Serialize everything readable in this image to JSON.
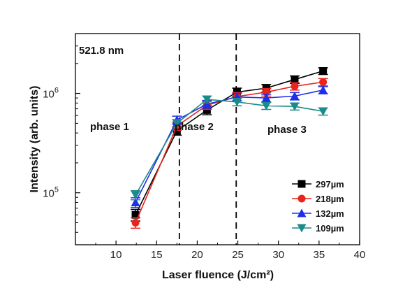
{
  "chart_data": {
    "type": "line",
    "xlabel": "Laser fluence (J/cm²)",
    "ylabel": "Intensity (arb. units)",
    "xlim": [
      5,
      40
    ],
    "ylim": [
      30000,
      4000000
    ],
    "yscale": "log",
    "x_ticks": [
      10,
      15,
      20,
      25,
      30,
      35,
      40
    ],
    "y_ticks": [
      {
        "value": 100000,
        "label_base": "10",
        "label_exp": "5"
      },
      {
        "value": 1000000,
        "label_base": "10",
        "label_exp": "6"
      }
    ],
    "x": [
      12.4,
      17.5,
      21.2,
      24.9,
      28.5,
      32.0,
      35.5
    ],
    "series": [
      {
        "name": "297µm",
        "color": "#000000",
        "marker": "square",
        "values": [
          60000,
          420000,
          680000,
          1030000,
          1130000,
          1380000,
          1680000
        ],
        "error": [
          8000,
          40000,
          70000,
          100000,
          100000,
          120000,
          130000
        ]
      },
      {
        "name": "218µm",
        "color": "#e8241c",
        "marker": "circle",
        "values": [
          50000,
          470000,
          760000,
          930000,
          1030000,
          1180000,
          1300000
        ],
        "error": [
          6000,
          45000,
          70000,
          90000,
          90000,
          100000,
          110000
        ]
      },
      {
        "name": "132µm",
        "color": "#1f2ee8",
        "marker": "triangle-up",
        "values": [
          80000,
          540000,
          780000,
          920000,
          900000,
          940000,
          1080000
        ],
        "error": [
          9000,
          50000,
          70000,
          80000,
          80000,
          80000,
          90000
        ]
      },
      {
        "name": "109µm",
        "color": "#1a8a8a",
        "marker": "triangle-down",
        "values": [
          95000,
          500000,
          870000,
          820000,
          750000,
          740000,
          660000
        ],
        "error": [
          10000,
          45000,
          70000,
          70000,
          60000,
          60000,
          55000
        ]
      }
    ],
    "vlines": [
      17.8,
      24.8
    ],
    "annotations": [
      "521.8 nm",
      "phase 1",
      "phase 2",
      "phase 3"
    ],
    "legend": "bottom-right",
    "grid": false
  }
}
